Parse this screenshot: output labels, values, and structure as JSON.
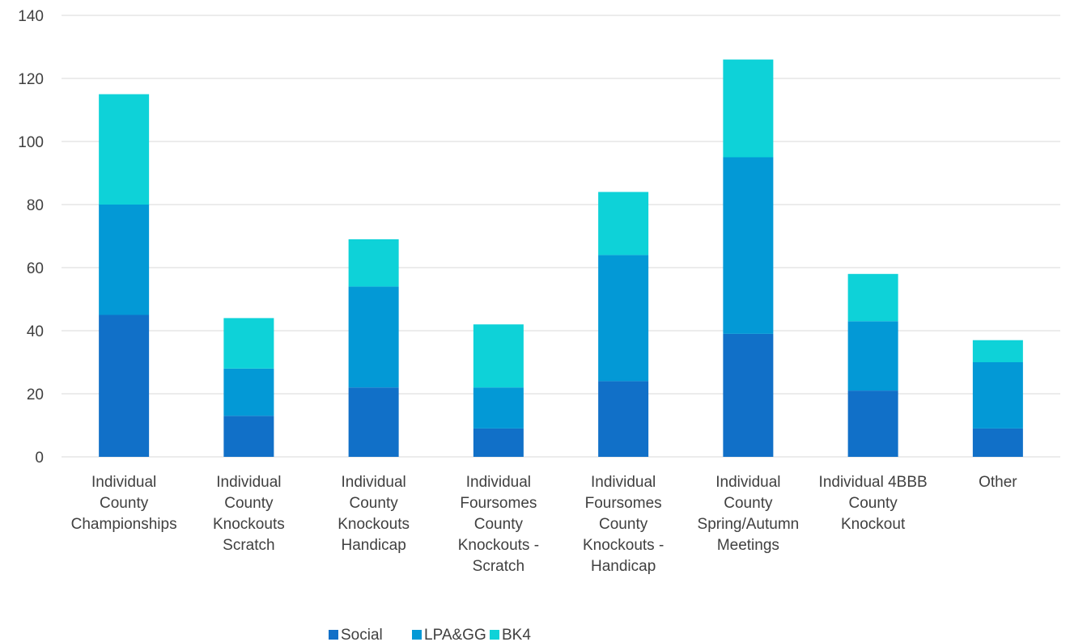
{
  "chart_data": {
    "type": "bar",
    "stacked": true,
    "categories": [
      [
        "Individual",
        "County",
        "Championships"
      ],
      [
        "Individual",
        "County",
        "Knockouts",
        "Scratch"
      ],
      [
        "Individual",
        "County",
        "Knockouts",
        "Handicap"
      ],
      [
        "Individual",
        "Foursomes",
        "County",
        "Knockouts -",
        "Scratch"
      ],
      [
        "Individual",
        "Foursomes",
        "County",
        "Knockouts -",
        "Handicap"
      ],
      [
        "Individual",
        "County",
        "Spring/Autumn",
        "Meetings"
      ],
      [
        "Individual 4BBB",
        "County",
        "Knockout"
      ],
      [
        "Other"
      ]
    ],
    "series": [
      {
        "name": "Social",
        "color": "#1170C8",
        "values": [
          45,
          13,
          22,
          9,
          24,
          39,
          21,
          9
        ]
      },
      {
        "name": "LPA&GG",
        "color": "#0399D6",
        "values": [
          35,
          15,
          32,
          13,
          40,
          56,
          22,
          21
        ]
      },
      {
        "name": "BK4",
        "color": "#0ED2D8",
        "values": [
          35,
          16,
          15,
          20,
          20,
          31,
          15,
          7
        ]
      }
    ],
    "ylim": [
      0,
      140
    ],
    "yticks": [
      0,
      20,
      40,
      60,
      80,
      100,
      120,
      140
    ],
    "grid": true,
    "legend_position": "bottom",
    "title": "",
    "xlabel": "",
    "ylabel": ""
  }
}
